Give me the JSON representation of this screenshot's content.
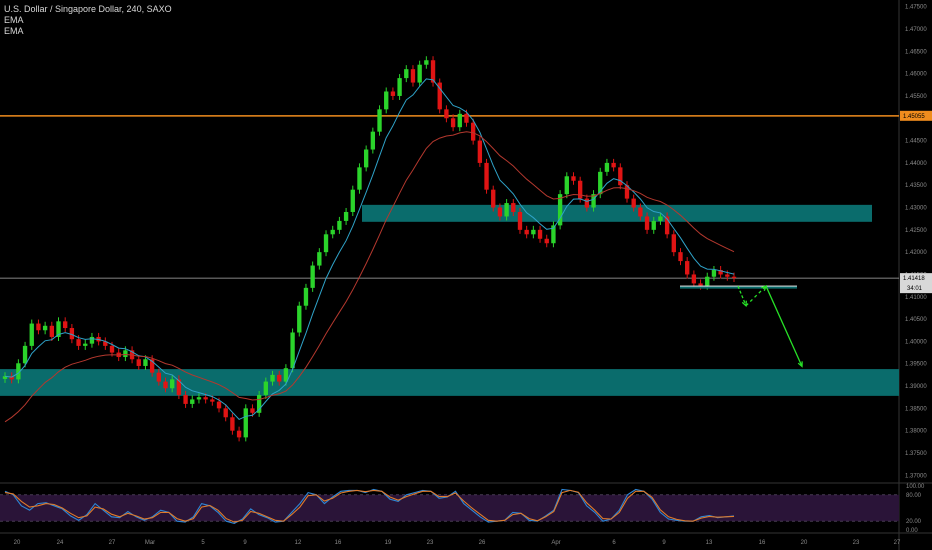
{
  "header": {
    "symbol_line": "U.S. Dollar / Singapore Dollar, 240, SAXO",
    "indicator_1": "EMA",
    "indicator_2": "EMA"
  },
  "colors": {
    "background": "#000000",
    "up_candle": "#2bd42b",
    "down_candle": "#e01414",
    "ema_fast": "#2fa3c9",
    "ema_slow": "#b4382e",
    "zone_fill": "#0a6c6c",
    "resistance_line": "#f08c1e",
    "price_line": "#b0b0b0",
    "forecast_arrows": "#27e027",
    "stoch_k": "#2d86d6",
    "stoch_d": "#e07a2a",
    "stoch_band": "#2a1438"
  },
  "chart_data": {
    "type": "candlestick",
    "price_axis_ticks": [
      "1.47500",
      "1.47000",
      "1.46500",
      "1.46000",
      "1.45500",
      "1.45000",
      "1.44500",
      "1.44000",
      "1.43500",
      "1.43000",
      "1.42500",
      "1.42000",
      "1.41500",
      "1.41000",
      "1.40500",
      "1.40000",
      "1.39500",
      "1.39000",
      "1.38500",
      "1.38000",
      "1.37500",
      "1.37000"
    ],
    "ylim": [
      1.3685,
      1.4765
    ],
    "x_tick_labels": [
      "20",
      "24",
      "27",
      "Mar",
      "5",
      "9",
      "12",
      "16",
      "19",
      "23",
      "26",
      "Apr",
      "6",
      "9",
      "13",
      "16",
      "20",
      "23",
      "27"
    ],
    "resistance_level": 1.45055,
    "resistance_label": "1.45055",
    "current_price": 1.41418,
    "current_price_label": "1.41418",
    "countdown_label": "34:01",
    "zones": [
      {
        "top": 1.4306,
        "bottom": 1.4268
      },
      {
        "top": 1.3938,
        "bottom": 1.3878
      }
    ],
    "neckline": {
      "level": 1.4124
    },
    "forecast_path": [
      1.4124,
      1.408,
      1.4124,
      1.3944
    ],
    "closes": [
      1.3922,
      1.3915,
      1.3951,
      1.399,
      1.404,
      1.4025,
      1.4035,
      1.401,
      1.4045,
      1.403,
      1.4005,
      1.399,
      1.3995,
      1.401,
      1.4,
      1.399,
      1.3975,
      1.3965,
      1.398,
      1.396,
      1.3945,
      1.396,
      1.393,
      1.391,
      1.3895,
      1.3915,
      1.388,
      1.386,
      1.387,
      1.3875,
      1.387,
      1.3865,
      1.385,
      1.383,
      1.38,
      1.3785,
      1.385,
      1.384,
      1.388,
      1.391,
      1.3925,
      1.391,
      1.394,
      1.402,
      1.408,
      1.412,
      1.417,
      1.42,
      1.424,
      1.425,
      1.427,
      1.429,
      1.434,
      1.439,
      1.443,
      1.447,
      1.452,
      1.456,
      1.455,
      1.459,
      1.461,
      1.458,
      1.462,
      1.463,
      1.458,
      1.452,
      1.45,
      1.448,
      1.451,
      1.449,
      1.445,
      1.44,
      1.434,
      1.43,
      1.428,
      1.431,
      1.429,
      1.425,
      1.424,
      1.425,
      1.423,
      1.422,
      1.426,
      1.433,
      1.437,
      1.436,
      1.432,
      1.43,
      1.433,
      1.438,
      1.44,
      1.439,
      1.435,
      1.432,
      1.43,
      1.428,
      1.425,
      1.427,
      1.428,
      1.424,
      1.42,
      1.418,
      1.415,
      1.413,
      1.4125,
      1.4145,
      1.416,
      1.415,
      1.4145,
      1.4142
    ],
    "ema_fast_label": "EMA",
    "ema_slow_label": "EMA",
    "stoch_axis_ticks": [
      "100.00",
      "80.00",
      "20.00",
      "0.00"
    ],
    "stoch_ylim": [
      0,
      100
    ],
    "stoch_upper": 80,
    "stoch_lower": 20,
    "stoch_k": [
      88,
      80,
      55,
      45,
      60,
      62,
      55,
      48,
      32,
      22,
      35,
      60,
      45,
      30,
      28,
      42,
      30,
      22,
      30,
      45,
      40,
      20,
      18,
      30,
      60,
      55,
      40,
      20,
      15,
      25,
      48,
      35,
      28,
      18,
      20,
      40,
      60,
      85,
      80,
      60,
      75,
      88,
      90,
      90,
      85,
      92,
      88,
      70,
      65,
      80,
      85,
      90,
      88,
      72,
      75,
      88,
      60,
      45,
      30,
      18,
      20,
      22,
      40,
      38,
      22,
      20,
      32,
      45,
      92,
      90,
      85,
      55,
      40,
      20,
      25,
      45,
      80,
      92,
      88,
      70,
      40,
      25,
      22,
      20,
      20,
      30,
      33,
      28,
      30,
      32
    ],
    "stoch_d": [
      85,
      82,
      65,
      52,
      55,
      60,
      58,
      50,
      38,
      28,
      32,
      52,
      48,
      36,
      30,
      38,
      32,
      25,
      28,
      40,
      40,
      26,
      20,
      26,
      52,
      56,
      45,
      26,
      18,
      22,
      42,
      38,
      30,
      22,
      20,
      35,
      52,
      78,
      80,
      66,
      72,
      84,
      88,
      90,
      87,
      90,
      88,
      75,
      68,
      76,
      82,
      88,
      88,
      76,
      76,
      84,
      66,
      50,
      36,
      22,
      20,
      22,
      35,
      38,
      26,
      21,
      30,
      42,
      85,
      90,
      86,
      62,
      45,
      26,
      25,
      40,
      72,
      88,
      88,
      74,
      46,
      30,
      24,
      21,
      20,
      27,
      31,
      29,
      30,
      31
    ]
  }
}
